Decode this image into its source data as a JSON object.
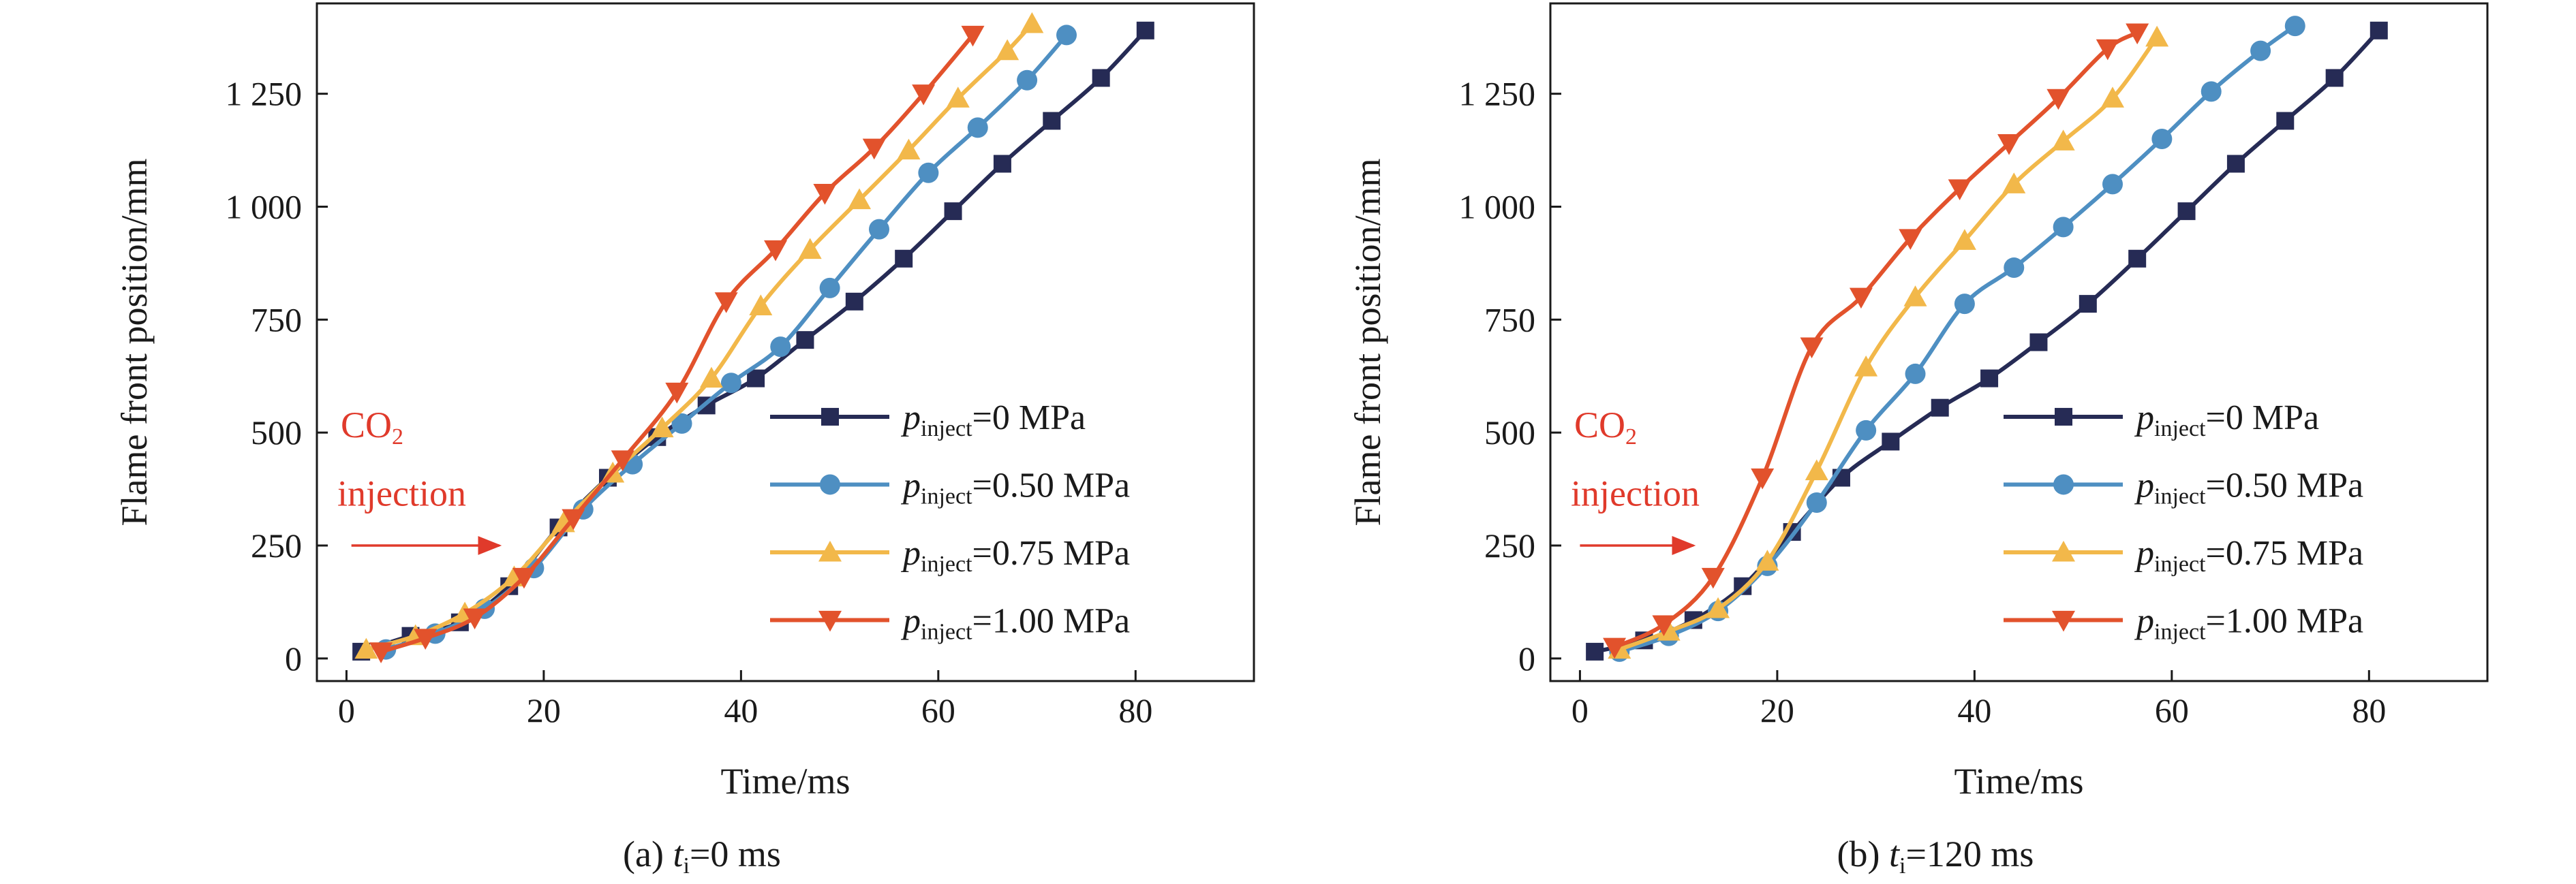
{
  "colors": {
    "p0": "#262b55",
    "p050": "#4e8fc2",
    "p075": "#f2b84a",
    "p100": "#e2522c",
    "annotation": "#e03a2b",
    "axis": "#1a1a1a"
  },
  "legend_text": {
    "p": "p",
    "sub": "inject",
    "series": [
      "=0 MPa",
      "=0.50 MPa",
      "=0.75 MPa",
      "=1.00 MPa"
    ]
  },
  "chart_data": [
    {
      "type": "line",
      "caption": {
        "prefix": "(a) ",
        "t": "t",
        "sub": "i",
        "suffix": "=0 ms"
      },
      "xlabel": "Time/ms",
      "ylabel": "Flame front position/mm",
      "xlim": [
        -3,
        92
      ],
      "ylim": [
        -50,
        1450
      ],
      "xticks": [
        0,
        20,
        40,
        60,
        80
      ],
      "xtick_labels": [
        "0",
        "20",
        "40",
        "60",
        "80"
      ],
      "yticks": [
        0,
        250,
        500,
        750,
        1000,
        1250
      ],
      "ytick_labels": [
        "0",
        "250",
        "500",
        "750",
        "1 000",
        "1 250"
      ],
      "grid": false,
      "legend_position": "right",
      "annotation": {
        "line1": "CO",
        "sub": "2",
        "line2": "injection",
        "arrow_y": 250,
        "arrow_x": [
          0.5,
          15.5
        ]
      },
      "series": [
        {
          "name": "p_inject=0 MPa",
          "marker": "square",
          "x": [
            1.5,
            6.5,
            11.5,
            16.5,
            21.5,
            26.5,
            31.5,
            36.5,
            41.5,
            46.5,
            51.5,
            56.5,
            61.5,
            66.5,
            71.5,
            76.5,
            81
          ],
          "y": [
            15,
            50,
            80,
            160,
            290,
            400,
            490,
            560,
            620,
            705,
            790,
            885,
            990,
            1095,
            1190,
            1285,
            1390
          ]
        },
        {
          "name": "p_inject=0.50 MPa",
          "marker": "circle",
          "x": [
            4,
            9,
            14,
            19,
            24,
            29,
            34,
            39,
            44,
            49,
            54,
            59,
            64,
            69,
            73
          ],
          "y": [
            20,
            55,
            110,
            200,
            330,
            430,
            520,
            610,
            690,
            820,
            950,
            1075,
            1175,
            1280,
            1380
          ]
        },
        {
          "name": "p_inject=0.75 MPa",
          "marker": "triangle-up",
          "x": [
            2,
            7,
            12,
            17,
            22,
            27,
            32,
            37,
            42,
            47,
            52,
            57,
            62,
            67,
            69.5
          ],
          "y": [
            20,
            50,
            100,
            180,
            300,
            410,
            510,
            620,
            780,
            905,
            1015,
            1125,
            1240,
            1345,
            1405
          ]
        },
        {
          "name": "p_inject=1.00 MPa",
          "marker": "triangle-down",
          "x": [
            3.5,
            8,
            13,
            18,
            23,
            28,
            33.5,
            38.5,
            43.5,
            48.5,
            53.5,
            58.5,
            63.5
          ],
          "y": [
            15,
            45,
            90,
            180,
            310,
            440,
            590,
            790,
            905,
            1030,
            1130,
            1250,
            1380
          ]
        }
      ]
    },
    {
      "type": "line",
      "caption": {
        "prefix": "(b) ",
        "t": "t",
        "sub": "i",
        "suffix": "=120 ms"
      },
      "xlabel": "Time/ms",
      "ylabel": "Flame front position/mm",
      "xlim": [
        -3,
        92
      ],
      "ylim": [
        -50,
        1450
      ],
      "xticks": [
        0,
        20,
        40,
        60,
        80
      ],
      "xtick_labels": [
        "0",
        "20",
        "40",
        "60",
        "80"
      ],
      "yticks": [
        0,
        250,
        500,
        750,
        1000,
        1250
      ],
      "ytick_labels": [
        "0",
        "250",
        "500",
        "750",
        "1 000",
        "1 250"
      ],
      "grid": false,
      "legend_position": "right",
      "annotation": {
        "line1": "CO",
        "sub": "2",
        "line2": "injection",
        "arrow_y": 250,
        "arrow_x": [
          0,
          11.5
        ]
      },
      "series": [
        {
          "name": "p_inject=0 MPa",
          "marker": "square",
          "x": [
            1.5,
            6.5,
            11.5,
            16.5,
            21.5,
            26.5,
            31.5,
            36.5,
            41.5,
            46.5,
            51.5,
            56.5,
            61.5,
            66.5,
            71.5,
            76.5,
            81
          ],
          "y": [
            15,
            40,
            85,
            160,
            280,
            400,
            480,
            555,
            620,
            700,
            785,
            885,
            990,
            1095,
            1190,
            1285,
            1390
          ]
        },
        {
          "name": "p_inject=0.50 MPa",
          "marker": "circle",
          "x": [
            4,
            9,
            14,
            19,
            24,
            29,
            34,
            39,
            44,
            49,
            54,
            59,
            64,
            69,
            72.5
          ],
          "y": [
            15,
            50,
            105,
            205,
            345,
            505,
            630,
            785,
            865,
            955,
            1050,
            1150,
            1255,
            1345,
            1400
          ]
        },
        {
          "name": "p_inject=0.75 MPa",
          "marker": "triangle-up",
          "x": [
            4,
            9,
            14,
            19,
            24,
            29,
            34,
            39,
            44,
            49,
            54,
            58.5
          ],
          "y": [
            20,
            60,
            110,
            215,
            415,
            645,
            800,
            925,
            1050,
            1145,
            1240,
            1375
          ]
        },
        {
          "name": "p_inject=1.00 MPa",
          "marker": "triangle-down",
          "x": [
            3.5,
            8.5,
            13.5,
            18.5,
            23.5,
            28.5,
            33.5,
            38.5,
            43.5,
            48.5,
            53.5,
            56.5
          ],
          "y": [
            25,
            75,
            180,
            400,
            690,
            800,
            930,
            1040,
            1140,
            1240,
            1350,
            1385
          ]
        }
      ]
    }
  ]
}
